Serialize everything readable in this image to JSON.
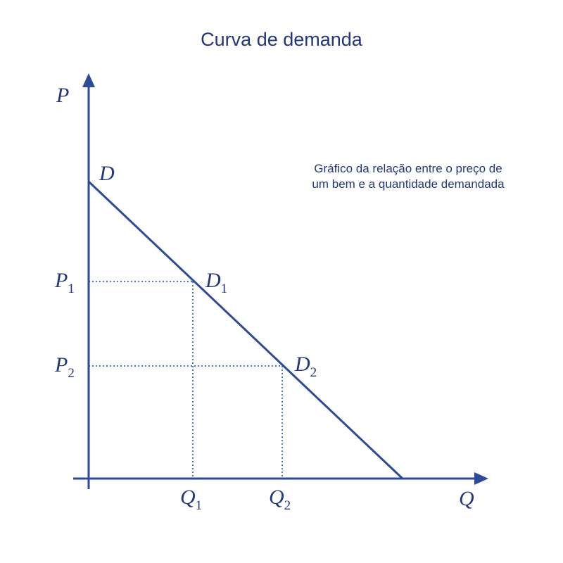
{
  "title": "Curva de demanda",
  "description": [
    "Gráfico da relação entre o preço de",
    "um bem e a quantidade demandada"
  ],
  "axes": {
    "y_label": "P",
    "x_label": "Q"
  },
  "curve_label": "D",
  "points": [
    {
      "label": "D",
      "sub": "1",
      "p_label": "P",
      "p_sub": "1",
      "q_label": "Q",
      "q_sub": "1"
    },
    {
      "label": "D",
      "sub": "2",
      "p_label": "P",
      "p_sub": "2",
      "q_label": "Q",
      "q_sub": "2"
    }
  ],
  "colors": {
    "primary": "#2b4a98",
    "dotted": "#4a76c8",
    "text": "#22377a"
  }
}
